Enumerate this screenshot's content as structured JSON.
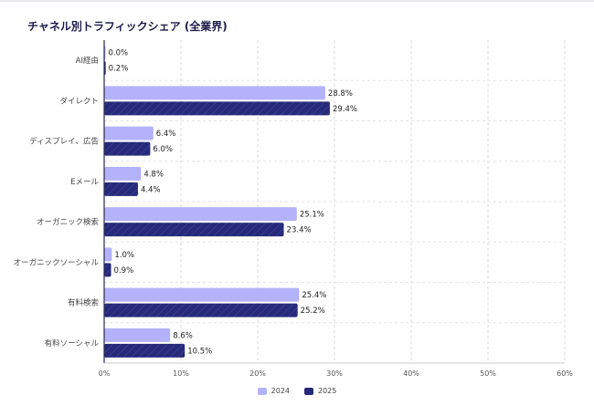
{
  "chart_data": {
    "type": "bar",
    "orientation": "horizontal",
    "title": "チャネル別トラフィックシェア (全業界)",
    "categories": [
      "AI経由",
      "ダイレクト",
      "ディスプレイ、広告",
      "Eメール",
      "オーガニック検索",
      "オーガニックソーシャル",
      "有料検索",
      "有料ソーシャル"
    ],
    "series": [
      {
        "name": "2024",
        "color": "#b4b2fb",
        "values": [
          0.0,
          28.8,
          6.4,
          4.8,
          25.1,
          1.0,
          25.4,
          8.6
        ]
      },
      {
        "name": "2025",
        "color": "#262a78",
        "values": [
          0.2,
          29.4,
          6.0,
          4.4,
          23.4,
          0.9,
          25.2,
          10.5
        ]
      }
    ],
    "value_labels": [
      [
        "0.0%",
        "28.8%",
        "6.4%",
        "4.8%",
        "25.1%",
        "1.0%",
        "25.4%",
        "8.6%"
      ],
      [
        "0.2%",
        "29.4%",
        "6.0%",
        "4.4%",
        "23.4%",
        "0.9%",
        "25.2%",
        "10.5%"
      ]
    ],
    "xlim": [
      0,
      60
    ],
    "xticks": [
      "0%",
      "10%",
      "20%",
      "30%",
      "40%",
      "50%",
      "60%"
    ],
    "grid": true,
    "legend": "bottom-center"
  }
}
